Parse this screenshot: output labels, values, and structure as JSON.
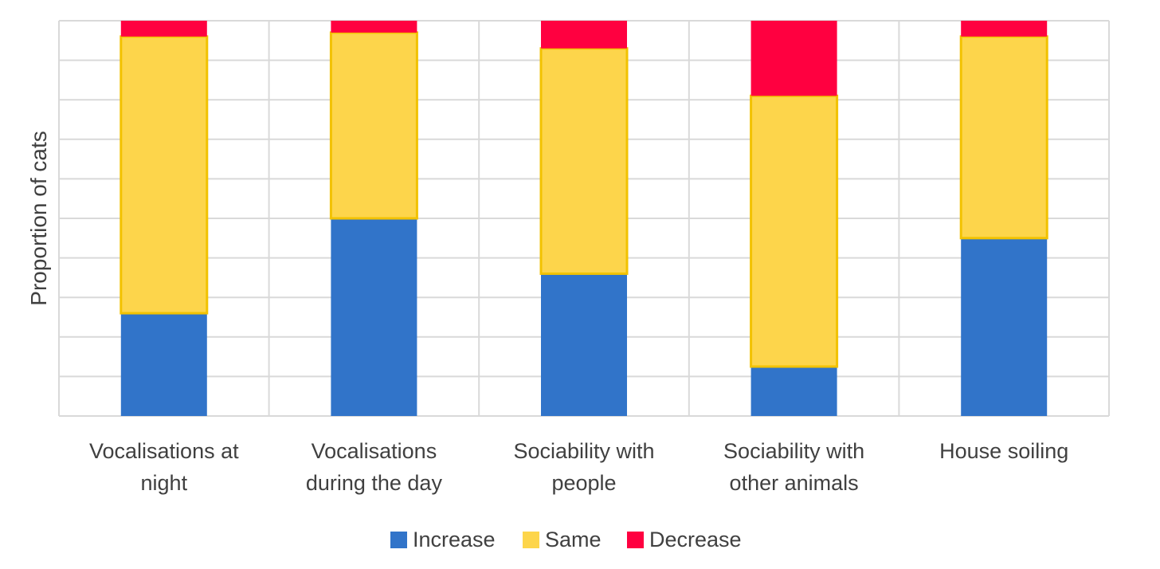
{
  "chart_data": {
    "type": "bar",
    "stacked": true,
    "normalized": true,
    "title": "",
    "xlabel": "",
    "ylabel": "Proportion of cats",
    "ylim": [
      0,
      1
    ],
    "grid": true,
    "legend_position": "bottom",
    "categories": [
      [
        "Vocalisations at",
        "night"
      ],
      [
        "Vocalisations",
        "during the day"
      ],
      [
        "Sociability with",
        "people"
      ],
      [
        "Sociability with",
        "other animals"
      ],
      [
        "House soiling"
      ]
    ],
    "series": [
      {
        "name": "Increase",
        "color": "#3174C9",
        "values": [
          0.26,
          0.5,
          0.36,
          0.125,
          0.45
        ]
      },
      {
        "name": "Same",
        "color": "#FDD54B",
        "values": [
          0.7,
          0.47,
          0.57,
          0.685,
          0.51
        ]
      },
      {
        "name": "Decrease",
        "color": "#FF0040",
        "values": [
          0.04,
          0.03,
          0.07,
          0.19,
          0.04
        ]
      }
    ],
    "gridline_count": 10
  }
}
